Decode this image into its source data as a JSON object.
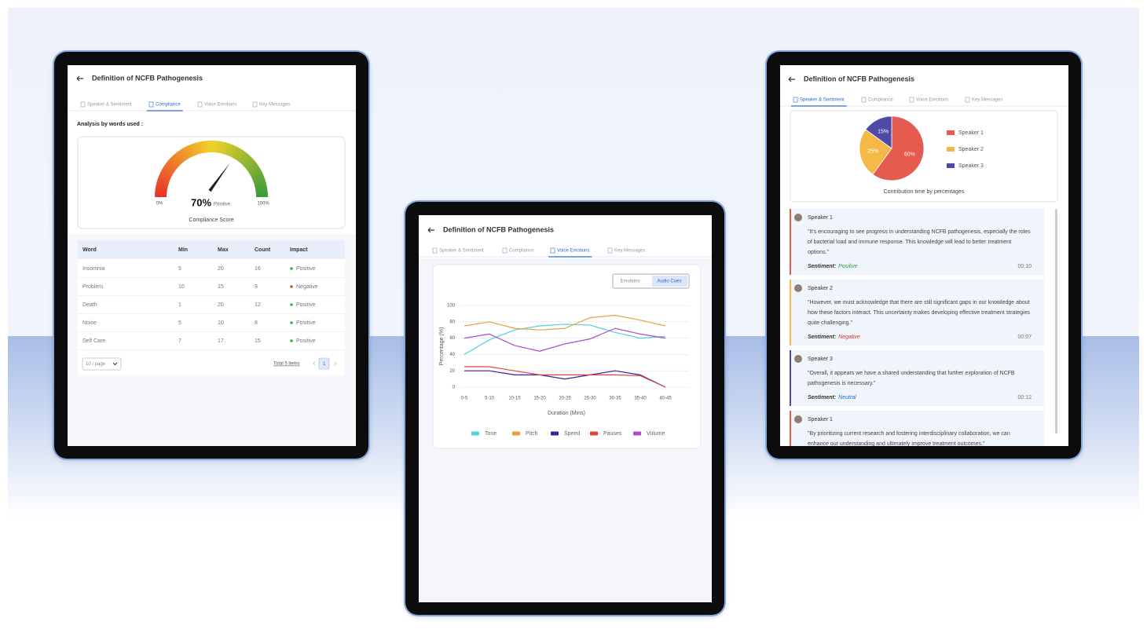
{
  "chart_data": [
    {
      "type": "gauge",
      "title": "Compliance Score",
      "values": [
        70
      ],
      "value_labels": [
        "70%"
      ],
      "status": "Positive",
      "ylim": [
        0,
        100
      ],
      "yticks": [
        {
          "value": 0,
          "label": "0%"
        },
        {
          "value": 100,
          "label": "100%"
        }
      ],
      "colors": [
        "#e8332a",
        "#f2d12a",
        "#3a9c3a"
      ],
      "needle_color": "#222222"
    },
    {
      "type": "line",
      "x_label": "Duration (Mins)",
      "y_label": "Percentage (%)",
      "categories": [
        "0-5",
        "5-10",
        "10-15",
        "15-20",
        "20-25",
        "25-30",
        "30-35",
        "35-40",
        "40-45"
      ],
      "ylim": [
        0,
        100
      ],
      "yticks": [
        0,
        20,
        40,
        60,
        80,
        100
      ],
      "grid": true,
      "series": [
        {
          "name": "Tone",
          "color": "#4fd1e0",
          "values": [
            40,
            58,
            70,
            75,
            77,
            76,
            67,
            60,
            62
          ]
        },
        {
          "name": "Pitch",
          "color": "#e9a33a",
          "values": [
            75,
            80,
            72,
            70,
            72,
            85,
            88,
            82,
            75
          ]
        },
        {
          "name": "Speed",
          "color": "#3a1fa0",
          "values": [
            20,
            20,
            15,
            15,
            10,
            15,
            20,
            15,
            0
          ]
        },
        {
          "name": "Pauses",
          "color": "#e0433c",
          "values": [
            25,
            25,
            20,
            15,
            15,
            15,
            15,
            14,
            0
          ]
        },
        {
          "name": "Volume",
          "color": "#b04ad0",
          "values": [
            60,
            65,
            51,
            44,
            53,
            59,
            72,
            65,
            60
          ]
        }
      ]
    },
    {
      "type": "pie",
      "title": "Contribution time by percentages",
      "categories": [
        "Speaker 1",
        "Speaker 2",
        "Speaker 3"
      ],
      "values": [
        60,
        25,
        15
      ],
      "value_labels": [
        "60%",
        "25%",
        "15%"
      ],
      "colors": [
        "#e65b50",
        "#f4b847",
        "#4e48a8"
      ]
    }
  ],
  "tablets": [
    {
      "title": "Definition of NCFB Pathogenesis",
      "tabs": [
        "Speaker & Sentiment",
        "Compliance",
        "Voice Emotions",
        "Key Messages"
      ],
      "active_tab": 1
    },
    {
      "title": "Definition of NCFB Pathogenesis",
      "tabs": [
        "Speaker & Sentiment",
        "Compliance",
        "Voice Emotions",
        "Key Messages"
      ],
      "active_tab": 2
    },
    {
      "title": "Definition of NCFB Pathogenesis",
      "tabs": [
        "Speaker & Sentiment",
        "Compliance",
        "Voice Emotions",
        "Key Messages"
      ],
      "active_tab": 0
    }
  ],
  "compliance": {
    "heading": "Analysis by words used :",
    "table": {
      "columns": [
        "Word",
        "Min",
        "Max",
        "Count",
        "Impact"
      ],
      "rows": [
        [
          "Insomnia",
          5,
          20,
          16,
          "Positive"
        ],
        [
          "Problem",
          10,
          15,
          9,
          "Negative"
        ],
        [
          "Death",
          1,
          20,
          12,
          "Positive"
        ],
        [
          "Noise",
          5,
          10,
          8,
          "Positive"
        ],
        [
          "Self Care",
          7,
          17,
          15,
          "Positive"
        ]
      ],
      "impact_colors": [
        "#3cb04a",
        "#d9423a",
        "#3cb04a",
        "#3cb04a",
        "#3cb04a"
      ]
    },
    "page_size": "10 / page",
    "total": "Total 5 items",
    "current_page": 1
  },
  "voice": {
    "options": [
      "Emotions",
      "Audio Cues"
    ],
    "active_option": 1
  },
  "transcript": [
    {
      "speaker": "Speaker 1",
      "text": "\"It's encouraging to see progress in understanding NCFB pathogenesis, especially the roles of bacterial load and immune response. This knowledge will lead to better treatment options.\"",
      "sentiment_label": "Sentiment:",
      "sentiment": "Positive",
      "sentiment_color": "#2e9a3a",
      "time": "00:10",
      "color": "#e65b50"
    },
    {
      "speaker": "Speaker 2",
      "text": "\"However, we must acknowledge that there are still significant gaps in our knowledge about how these factors interact. This uncertainty makes developing effective treatment strategies quite challenging.\"",
      "sentiment_label": "Sentiment:",
      "sentiment": "Negative",
      "sentiment_color": "#d42f2f",
      "time": "00:07",
      "color": "#f4b847"
    },
    {
      "speaker": "Speaker 3",
      "text": "\"Overall, it appears we have a shared understanding that further exploration of NCFB pathogenesis is necessary.\"",
      "sentiment_label": "Sentiment:",
      "sentiment": "Neutral",
      "sentiment_color": "#2d6bd1",
      "time": "00:12",
      "color": "#4e48a8"
    },
    {
      "speaker": "Speaker 1",
      "text": "\"By prioritizing current research and fostering interdisciplinary collaboration, we can enhance our understanding and ultimately improve treatment outcomes.\"",
      "color": "#e65b50"
    }
  ]
}
